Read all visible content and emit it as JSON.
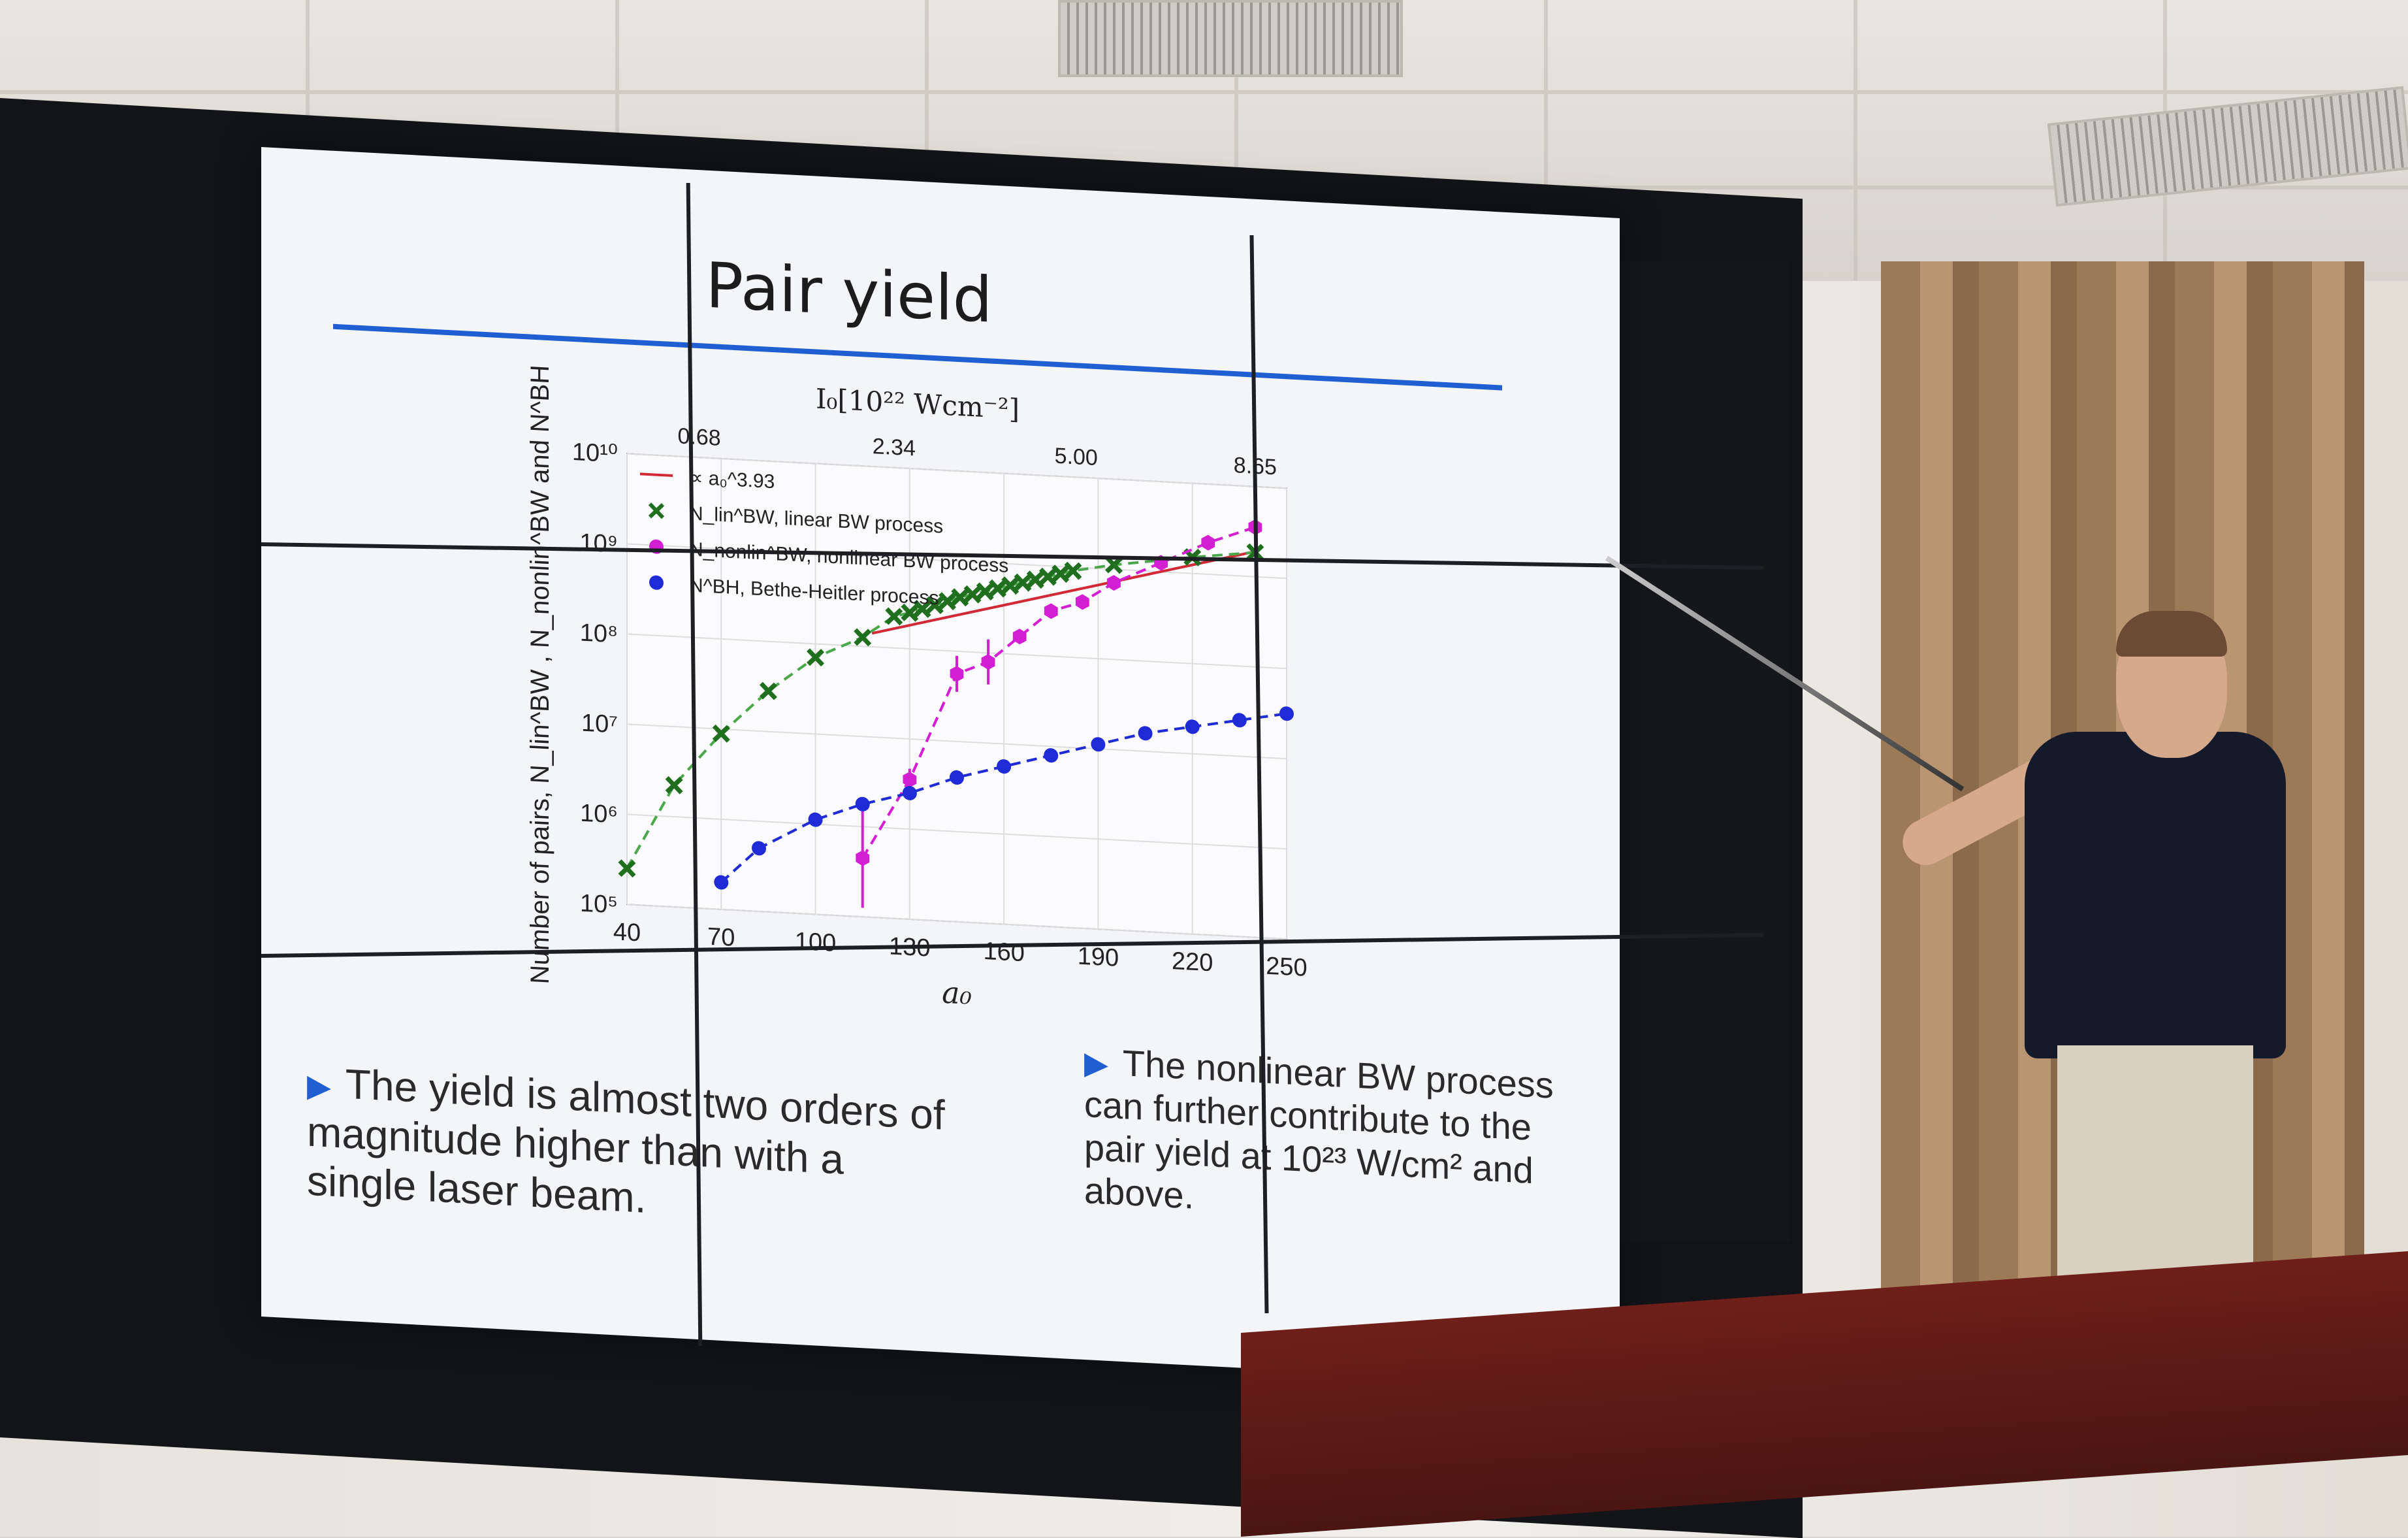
{
  "slide": {
    "title": "Pair yield",
    "bullets": [
      "The yield is almost two orders of magnitude higher than with a single laser beam.",
      "The nonlinear BW process can further contribute to the pair yield at 10²³ W/cm² and above."
    ]
  },
  "chart_data": {
    "type": "scatter",
    "title": "",
    "xlabel": "a₀",
    "ylabel": "Number of pairs, N_lin^BW , N_nonlin^BW and N^BH",
    "top_xlabel": "I₀[10²² Wcm⁻²]",
    "xlim": [
      40,
      250
    ],
    "ylim_log10": [
      5,
      10
    ],
    "x_ticks": [
      40,
      70,
      100,
      130,
      160,
      190,
      220,
      250
    ],
    "y_ticks": [
      "10⁵",
      "10⁶",
      "10⁷",
      "10⁸",
      "10⁹",
      "10¹⁰"
    ],
    "top_ticks": [
      {
        "a0": 63,
        "label": "0.68"
      },
      {
        "a0": 125,
        "label": "2.34"
      },
      {
        "a0": 183,
        "label": "5.00"
      },
      {
        "a0": 240,
        "label": "8.65"
      }
    ],
    "grid": true,
    "legend_position": "top-left",
    "series": [
      {
        "name": "∝ a₀^3.93",
        "style": "line",
        "color": "#d12a36",
        "x": [
          118,
          240
        ],
        "log10_y": [
          8.15,
          9.28
        ]
      },
      {
        "name": "N_lin^BW, linear BW process",
        "style": "x-marker",
        "color": "#1f6f1f",
        "line_color": "#4aa84a",
        "x": [
          40,
          55,
          70,
          85,
          100,
          115,
          125,
          130,
          134,
          138,
          142,
          146,
          150,
          154,
          158,
          162,
          166,
          170,
          174,
          178,
          182,
          195,
          220,
          240
        ],
        "log10_y": [
          5.4,
          6.35,
          6.95,
          7.45,
          7.85,
          8.1,
          8.35,
          8.4,
          8.45,
          8.5,
          8.55,
          8.6,
          8.64,
          8.68,
          8.72,
          8.76,
          8.8,
          8.84,
          8.88,
          8.92,
          8.96,
          9.05,
          9.18,
          9.27
        ]
      },
      {
        "name": "N_nonlin^BW, nonlinear BW process",
        "style": "hexagon",
        "color": "#d41ed4",
        "x": [
          115,
          130,
          145,
          155,
          165,
          175,
          185,
          195,
          210,
          225,
          240
        ],
        "log10_y": [
          5.65,
          6.55,
          7.75,
          7.9,
          8.2,
          8.5,
          8.62,
          8.85,
          9.1,
          9.35,
          9.55
        ],
        "err_log10": [
          0.55,
          0.12,
          0.2,
          0.25,
          0.05,
          0.05,
          0.04,
          0.04,
          0.05,
          0.08,
          0.05
        ]
      },
      {
        "name": "N^BH, Bethe-Heitler process",
        "style": "circle",
        "color": "#1f2bd6",
        "x": [
          70,
          82,
          100,
          115,
          130,
          145,
          160,
          175,
          190,
          205,
          220,
          235,
          250
        ],
        "log10_y": [
          5.3,
          5.7,
          6.05,
          6.25,
          6.4,
          6.6,
          6.75,
          6.9,
          7.05,
          7.2,
          7.3,
          7.4,
          7.5
        ]
      }
    ]
  }
}
